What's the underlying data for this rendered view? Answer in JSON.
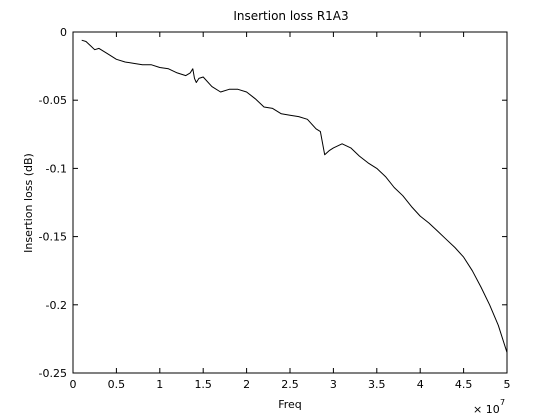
{
  "chart_data": {
    "type": "line",
    "title": "Insertion loss R1A3",
    "xlabel": "Freq",
    "ylabel": "Insertion loss (dB)",
    "x_multiplier": {
      "base": "× 10",
      "exponent": "7"
    },
    "xlim": [
      0,
      50000000
    ],
    "ylim": [
      -0.25,
      0
    ],
    "x_ticks": [
      0,
      5000000,
      10000000,
      15000000,
      20000000,
      25000000,
      30000000,
      35000000,
      40000000,
      45000000,
      50000000
    ],
    "x_tick_labels": [
      "0",
      "0.5",
      "1",
      "1.5",
      "2",
      "2.5",
      "3",
      "3.5",
      "4",
      "4.5",
      "5"
    ],
    "y_ticks": [
      0,
      -0.05,
      -0.1,
      -0.15,
      -0.2,
      -0.25
    ],
    "y_tick_labels": [
      "0",
      "-0.05",
      "-0.1",
      "-0.15",
      "-0.2",
      "-0.25"
    ],
    "grid": false,
    "line_color": "#000000",
    "series": [
      {
        "x": [
          1000000,
          1500000,
          2000000,
          2500000,
          3000000,
          4000000,
          5000000,
          6000000,
          7000000,
          8000000,
          9000000,
          10000000,
          11000000,
          12000000,
          13000000,
          13500000,
          13800000,
          14000000,
          14200000,
          14500000,
          15000000,
          16000000,
          17000000,
          18000000,
          19000000,
          20000000,
          21000000,
          22000000,
          23000000,
          24000000,
          25000000,
          26000000,
          27000000,
          28000000,
          28500000,
          29000000,
          29500000,
          30000000,
          31000000,
          32000000,
          33000000,
          34000000,
          35000000,
          36000000,
          37000000,
          38000000,
          39000000,
          40000000,
          41000000,
          42000000,
          43000000,
          44000000,
          45000000,
          46000000,
          47000000,
          48000000,
          49000000,
          50000000
        ],
        "y": [
          -0.006,
          -0.007,
          -0.01,
          -0.013,
          -0.012,
          -0.016,
          -0.02,
          -0.022,
          -0.023,
          -0.024,
          -0.024,
          -0.026,
          -0.027,
          -0.03,
          -0.032,
          -0.03,
          -0.027,
          -0.034,
          -0.037,
          -0.034,
          -0.033,
          -0.04,
          -0.044,
          -0.042,
          -0.042,
          -0.044,
          -0.049,
          -0.055,
          -0.056,
          -0.06,
          -0.061,
          -0.062,
          -0.064,
          -0.071,
          -0.073,
          -0.09,
          -0.087,
          -0.085,
          -0.082,
          -0.085,
          -0.091,
          -0.096,
          -0.1,
          -0.106,
          -0.114,
          -0.12,
          -0.128,
          -0.135,
          -0.14,
          -0.146,
          -0.152,
          -0.158,
          -0.165,
          -0.175,
          -0.187,
          -0.2,
          -0.215,
          -0.235
        ]
      }
    ]
  }
}
